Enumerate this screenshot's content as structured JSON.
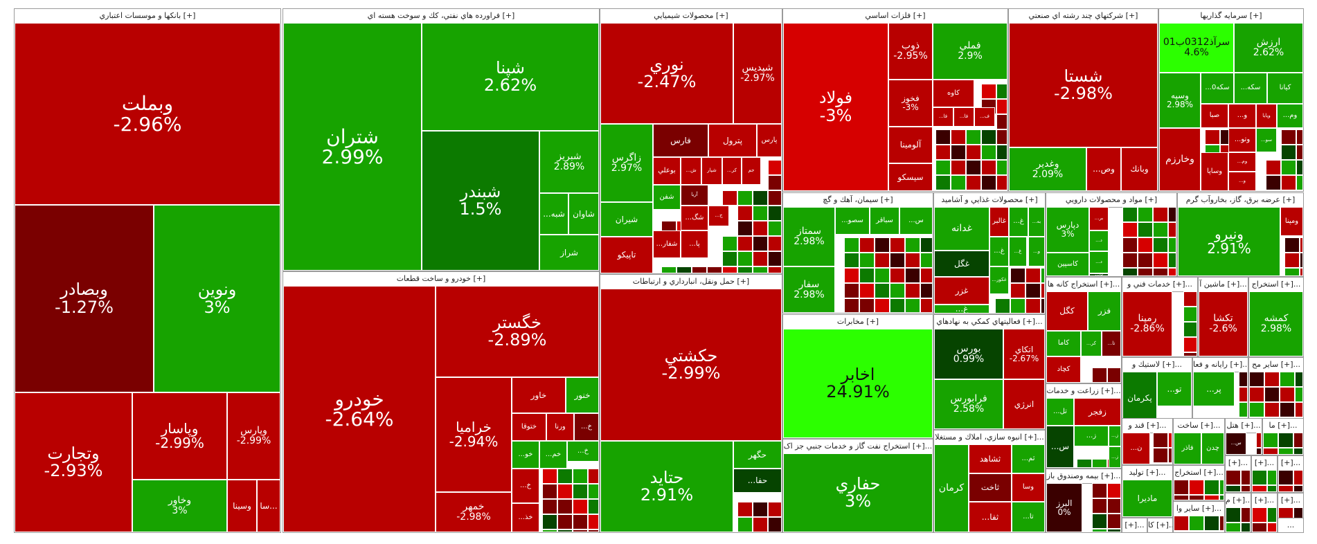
{
  "colors": {
    "bright_green": "#2cff00",
    "green": "#17a300",
    "dark_green": "#0c7a00",
    "deep_green": "#064400",
    "red": "#b80000",
    "bright_red": "#d60000",
    "dark_red": "#7a0000",
    "deep_red": "#3a0000",
    "header_bg": "#ffffff",
    "page_bg": "#ffffff"
  },
  "sectors": [
    {
      "title": "بانکها و موسسات اعتباري [+]",
      "tiles": [
        {
          "sym": "وبملت",
          "pct": "-2.96%",
          "color": "red"
        },
        {
          "sym": "وبصادر",
          "pct": "-1.27%",
          "color": "dark_red"
        },
        {
          "sym": "ونوين",
          "pct": "3%",
          "color": "green"
        },
        {
          "sym": "وتجارت",
          "pct": "-2.93%",
          "color": "red"
        },
        {
          "sym": "وپاسار",
          "pct": "-2.99%",
          "color": "red"
        },
        {
          "sym": "وپارس",
          "pct": "-2.99%",
          "color": "red"
        },
        {
          "sym": "وخاور",
          "pct": "3%",
          "color": "green"
        },
        {
          "sym": "وسينا",
          "pct": "",
          "color": "red"
        },
        {
          "sym": "سا...",
          "pct": "",
          "color": "red"
        }
      ]
    },
    {
      "title": "فراورده هاي نفتي، كك و سوخت هسته اي [+]",
      "tiles": [
        {
          "sym": "شتران",
          "pct": "2.99%",
          "color": "green"
        },
        {
          "sym": "شپنا",
          "pct": "2.62%",
          "color": "green"
        },
        {
          "sym": "شبندر",
          "pct": "1.5%",
          "color": "dark_green"
        },
        {
          "sym": "شبريز",
          "pct": "2.89%",
          "color": "green"
        },
        {
          "sym": "...شبه",
          "pct": "",
          "color": "green"
        },
        {
          "sym": "شاوان",
          "pct": "",
          "color": "green"
        },
        {
          "sym": "شراز",
          "pct": "",
          "color": "green"
        }
      ]
    },
    {
      "title": "محصولات شيميايي [+]",
      "tiles": [
        {
          "sym": "نوري",
          "pct": "-2.47%",
          "color": "red"
        },
        {
          "sym": "شپديس",
          "pct": "-2.97%",
          "color": "red"
        },
        {
          "sym": "زاگرس",
          "pct": "2.97%",
          "color": "green"
        },
        {
          "sym": "فارس",
          "pct": "",
          "color": "dark_red"
        },
        {
          "sym": "پترول",
          "pct": "",
          "color": "red"
        },
        {
          "sym": "پارس",
          "pct": "",
          "color": "red"
        },
        {
          "sym": "بوعلي",
          "pct": "",
          "color": "red"
        },
        {
          "sym": "...ش",
          "pct": "",
          "color": "red"
        },
        {
          "sym": "شپار",
          "pct": "",
          "color": "red"
        },
        {
          "sym": "...كر",
          "pct": "",
          "color": "red"
        },
        {
          "sym": "جم",
          "pct": "",
          "color": "red"
        },
        {
          "sym": "شفن",
          "pct": "",
          "color": "green"
        },
        {
          "sym": "آريا",
          "pct": "",
          "color": "dark_red"
        },
        {
          "sym": "شيران",
          "pct": "",
          "color": "green"
        },
        {
          "sym": "...شگ",
          "pct": "",
          "color": "red"
        },
        {
          "sym": "...ج",
          "pct": "",
          "color": "red"
        },
        {
          "sym": "تاپيكو",
          "pct": "",
          "color": "red"
        },
        {
          "sym": "...شفار",
          "pct": "",
          "color": "red"
        },
        {
          "sym": "...پا",
          "pct": "",
          "color": "red"
        }
      ]
    },
    {
      "title": "فلزات اساسي [+]",
      "tiles": [
        {
          "sym": "فولاد",
          "pct": "-3%",
          "color": "bright_red"
        },
        {
          "sym": "ذوب",
          "pct": "-2.95%",
          "color": "red"
        },
        {
          "sym": "فملي",
          "pct": "2.9%",
          "color": "green"
        },
        {
          "sym": "فخوز",
          "pct": "-3%",
          "color": "red"
        },
        {
          "sym": "كاوه",
          "pct": "",
          "color": "red"
        },
        {
          "sym": "آلومينا",
          "pct": "",
          "color": "red"
        },
        {
          "sym": "...فا",
          "pct": "",
          "color": "red"
        },
        {
          "sym": "...فا",
          "pct": "",
          "color": "red"
        },
        {
          "sym": "...ف",
          "pct": "",
          "color": "red"
        },
        {
          "sym": "سيسكو",
          "pct": "",
          "color": "red"
        }
      ]
    },
    {
      "title": "شركتهاي چند رشته اي صنعتي [+]",
      "tiles": [
        {
          "sym": "شستا",
          "pct": "-2.98%",
          "color": "red"
        },
        {
          "sym": "وغدير",
          "pct": "2.09%",
          "color": "green"
        },
        {
          "sym": "...وص",
          "pct": "",
          "color": "red"
        },
        {
          "sym": "وبانك",
          "pct": "",
          "color": "red"
        }
      ]
    },
    {
      "title": "سرمايه گذاريها [+]",
      "tiles": [
        {
          "sym": "سرآذ0312ب01",
          "pct": "4.6%",
          "color": "bright_green"
        },
        {
          "sym": "ارزش",
          "pct": "2.62%",
          "color": "green"
        },
        {
          "sym": "...سكه0",
          "pct": "",
          "color": "green"
        },
        {
          "sym": "...سكه",
          "pct": "",
          "color": "green"
        },
        {
          "sym": "كيانا",
          "pct": "",
          "color": "green"
        },
        {
          "sym": "وسپه",
          "pct": "2.98%",
          "color": "green"
        },
        {
          "sym": "صبا",
          "pct": "",
          "color": "red"
        },
        {
          "sym": "...و",
          "pct": "",
          "color": "red"
        },
        {
          "sym": "وپايا",
          "pct": "",
          "color": "red"
        },
        {
          "sym": "...وم",
          "pct": "",
          "color": "green"
        },
        {
          "sym": "وخارزم",
          "pct": "",
          "color": "red"
        },
        {
          "sym": "...وتو",
          "pct": "",
          "color": "red"
        },
        {
          "sym": "...سو",
          "pct": "",
          "color": "green"
        },
        {
          "sym": "وساپا",
          "pct": "",
          "color": "red"
        },
        {
          "sym": "...وم",
          "pct": "",
          "color": "red"
        },
        {
          "sym": "...و",
          "pct": "",
          "color": "red"
        }
      ]
    },
    {
      "title": "سيمان، آهك و گچ [+]",
      "tiles": [
        {
          "sym": "سمتاز",
          "pct": "2.98%",
          "color": "green"
        },
        {
          "sym": "...سصو",
          "pct": "",
          "color": "green"
        },
        {
          "sym": "سباقر",
          "pct": "",
          "color": "green"
        },
        {
          "sym": "...س",
          "pct": "",
          "color": "green"
        },
        {
          "sym": "سفار",
          "pct": "2.98%",
          "color": "green"
        }
      ]
    },
    {
      "title": "محصولات غذايي و آشاميد [+]",
      "tiles": [
        {
          "sym": "غدانه",
          "pct": "",
          "color": "green"
        },
        {
          "sym": "غالبر",
          "pct": "",
          "color": "red"
        },
        {
          "sym": "...غ",
          "pct": "",
          "color": "green"
        },
        {
          "sym": "...به",
          "pct": "",
          "color": "green"
        },
        {
          "sym": "...غ",
          "pct": "",
          "color": "green"
        },
        {
          "sym": "...غ",
          "pct": "",
          "color": "green"
        },
        {
          "sym": "...و",
          "pct": "",
          "color": "green"
        },
        {
          "sym": "غگل",
          "pct": "",
          "color": "deep_green"
        },
        {
          "sym": "غزر",
          "pct": "",
          "color": "red"
        },
        {
          "sym": "...غكور",
          "pct": "",
          "color": "green"
        },
        {
          "sym": "...غ",
          "pct": "",
          "color": "green"
        }
      ]
    },
    {
      "title": "مواد و محصولات دارويي [+]",
      "tiles": [
        {
          "sym": "دپارس",
          "pct": "3%",
          "color": "green"
        },
        {
          "sym": "...بر",
          "pct": "",
          "color": "red"
        },
        {
          "sym": "...د",
          "pct": "",
          "color": "green"
        },
        {
          "sym": "...د",
          "pct": "",
          "color": "green"
        },
        {
          "sym": "كاسپين",
          "pct": "",
          "color": "green"
        },
        {
          "sym": "...دا",
          "pct": "",
          "color": "deep_green"
        }
      ]
    },
    {
      "title": "عرضه برق، گاز، بخاروآب گرم [+]",
      "tiles": [
        {
          "sym": "ونيرو",
          "pct": "2.91%",
          "color": "green"
        },
        {
          "sym": "ومپنا",
          "pct": "",
          "color": "red"
        }
      ]
    },
    {
      "title": "مخابرات [+]",
      "tiles": [
        {
          "sym": "اخابر",
          "pct": "24.91%",
          "color": "bright_green"
        }
      ]
    },
    {
      "title": "خودرو و ساخت قطعات [+]",
      "tiles": [
        {
          "sym": "خودرو",
          "pct": "-2.64%",
          "color": "red"
        },
        {
          "sym": "خگستر",
          "pct": "-2.89%",
          "color": "red"
        },
        {
          "sym": "خراميا",
          "pct": "-2.94%",
          "color": "red"
        },
        {
          "sym": "خاور",
          "pct": "",
          "color": "red"
        },
        {
          "sym": "خنور",
          "pct": "",
          "color": "green"
        },
        {
          "sym": "ختوقا",
          "pct": "",
          "color": "red"
        },
        {
          "sym": "ورنا",
          "pct": "",
          "color": "red"
        },
        {
          "sym": "...خ",
          "pct": "",
          "color": "dark_red"
        },
        {
          "sym": "...خو",
          "pct": "",
          "color": "green"
        },
        {
          "sym": "...خم",
          "pct": "",
          "color": "green"
        },
        {
          "sym": "...خ",
          "pct": "",
          "color": "green"
        },
        {
          "sym": "خمهر",
          "pct": "-2.98%",
          "color": "red"
        },
        {
          "sym": "...خ",
          "pct": "",
          "color": "red"
        },
        {
          "sym": "...خذ",
          "pct": "",
          "color": "red"
        }
      ]
    },
    {
      "title": "حمل ونقل، انبارداري و ارتباطات [+]",
      "tiles": [
        {
          "sym": "حكشتي",
          "pct": "-2.99%",
          "color": "red"
        },
        {
          "sym": "حتايد",
          "pct": "2.91%",
          "color": "green"
        },
        {
          "sym": "حگهر",
          "pct": "",
          "color": "green"
        },
        {
          "sym": "...حفا",
          "pct": "",
          "color": "deep_green"
        }
      ]
    },
    {
      "title": "استخراج نفت گاز و خدمات جنبي جز اک [+]...",
      "tiles": [
        {
          "sym": "حفاري",
          "pct": "3%",
          "color": "green"
        }
      ]
    },
    {
      "title": "فعاليتهاي كمكي به نهادهاي [+]...",
      "tiles": [
        {
          "sym": "بورس",
          "pct": "0.99%",
          "color": "deep_green"
        },
        {
          "sym": "اتكاي",
          "pct": "-2.67%",
          "color": "red"
        },
        {
          "sym": "فرابورس",
          "pct": "2.58%",
          "color": "green"
        },
        {
          "sym": "انرژي",
          "pct": "",
          "color": "red"
        }
      ]
    },
    {
      "title": "انبوه سازي، املاك و مستغلا [+]...",
      "tiles": [
        {
          "sym": "ثشاهد",
          "pct": "",
          "color": "red"
        },
        {
          "sym": "...ثم",
          "pct": "",
          "color": "green"
        },
        {
          "sym": "كرمان",
          "pct": "",
          "color": "green"
        },
        {
          "sym": "ثاخت",
          "pct": "",
          "color": "dark_red"
        },
        {
          "sym": "وسا",
          "pct": "",
          "color": "red"
        },
        {
          "sym": "...تا",
          "pct": "",
          "color": "green"
        },
        {
          "sym": "ثبهساز",
          "pct": "",
          "color": "green"
        },
        {
          "sym": "...ثفا",
          "pct": "",
          "color": "red"
        }
      ]
    },
    {
      "title": "استخراج كانه ها [+]...",
      "tiles": [
        {
          "sym": "كگل",
          "pct": "",
          "color": "red"
        },
        {
          "sym": "فزر",
          "pct": "",
          "color": "green"
        },
        {
          "sym": "كاما",
          "pct": "",
          "color": "green"
        },
        {
          "sym": "...كر",
          "pct": "",
          "color": "green"
        },
        {
          "sym": "...تا",
          "pct": "",
          "color": "dark_red"
        },
        {
          "sym": "كچاد",
          "pct": "",
          "color": "red"
        }
      ]
    },
    {
      "title": "زراعت و خدمات [+]...",
      "tiles": [
        {
          "sym": "...تل",
          "pct": "",
          "color": "green"
        },
        {
          "sym": "زفجر",
          "pct": "",
          "color": "red"
        },
        {
          "sym": "...ز",
          "pct": "",
          "color": "green"
        },
        {
          "sym": "...ز",
          "pct": "",
          "color": "green"
        },
        {
          "sym": "...ز",
          "pct": "",
          "color": "green"
        },
        {
          "sym": "...س",
          "pct": "",
          "color": "deep_green"
        }
      ]
    },
    {
      "title": "بيمه وصندوق باز [+]...",
      "tiles": [
        {
          "sym": "البرز",
          "pct": "0%",
          "color": "deep_red"
        }
      ]
    },
    {
      "title": "خدمات فني و [+]...",
      "tiles": [
        {
          "sym": "رمپنا",
          "pct": "-2.86%",
          "color": "red"
        }
      ]
    },
    {
      "title": "ماشين آ [+]...",
      "tiles": [
        {
          "sym": "تكشا",
          "pct": "-2.6%",
          "color": "red"
        }
      ]
    },
    {
      "title": "استخراج [+]...",
      "tiles": [
        {
          "sym": "كمشه",
          "pct": "2.98%",
          "color": "green"
        }
      ]
    },
    {
      "title": "لاستيك و [+]...",
      "tiles": [
        {
          "sym": "پكرمان",
          "pct": "",
          "color": "dark_green"
        },
        {
          "sym": "...تو",
          "pct": "",
          "color": "green"
        }
      ]
    },
    {
      "title": "رايانه و فعا [+]...",
      "tiles": [
        {
          "sym": "...پر",
          "pct": "",
          "color": "green"
        }
      ]
    },
    {
      "title": "ساير مح [+]...",
      "tiles": []
    },
    {
      "title": "قند و [+]...",
      "tiles": [
        {
          "sym": "...ن",
          "pct": "",
          "color": "red"
        }
      ]
    },
    {
      "title": "ساخت [+]...",
      "tiles": [
        {
          "sym": "فاذر",
          "pct": "",
          "color": "green"
        },
        {
          "sym": "چدن",
          "pct": "",
          "color": "green"
        }
      ]
    },
    {
      "title": "هتل [+]...",
      "tiles": [
        {
          "sym": "...س",
          "pct": "",
          "color": "deep_red"
        }
      ]
    },
    {
      "title": "ما [+]...",
      "tiles": []
    },
    {
      "title": "استخراج [+]...",
      "tiles": []
    },
    {
      "title": "توليد [+]...",
      "tiles": [
        {
          "sym": "ماديرا",
          "pct": "",
          "color": "green"
        }
      ]
    },
    {
      "title": "ساير وا [+]...",
      "tiles": []
    },
    {
      "title": "[+]...",
      "tiles": []
    },
    {
      "title": "[+]...",
      "tiles": []
    },
    {
      "title": "[+]...",
      "tiles": []
    },
    {
      "title": "م [+]...",
      "tiles": []
    },
    {
      "title": "[+]...",
      "tiles": []
    },
    {
      "title": "[+]...",
      "tiles": []
    },
    {
      "title": "[+]...",
      "tiles": []
    },
    {
      "title": "كا [+]...",
      "tiles": []
    },
    {
      "title": "...",
      "tiles": []
    }
  ]
}
